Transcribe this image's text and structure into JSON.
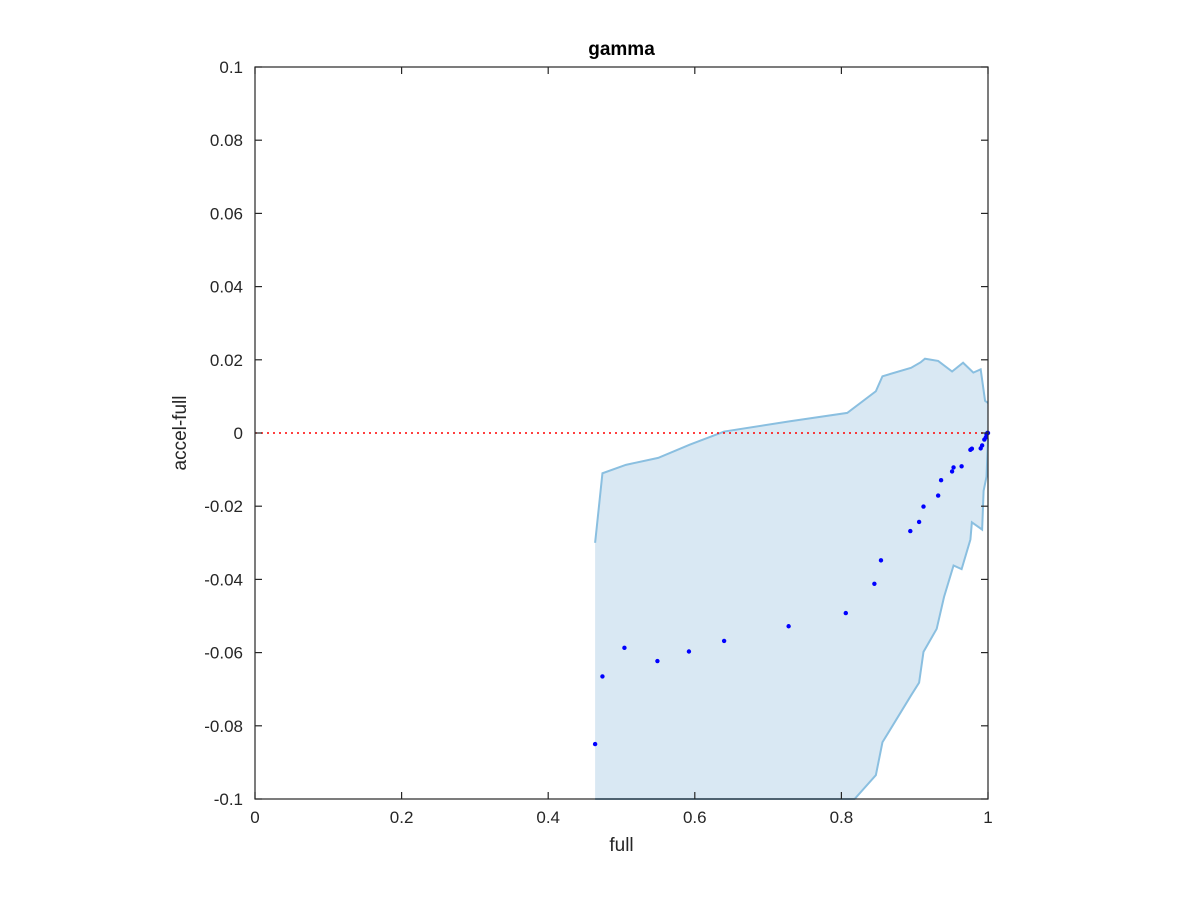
{
  "chart_data": {
    "type": "scatter",
    "title": "gamma",
    "xlabel": "full",
    "ylabel": "accel-full",
    "xlim": [
      0,
      1
    ],
    "ylim": [
      -0.1,
      0.1
    ],
    "xticks": [
      0,
      0.2,
      0.4,
      0.6,
      0.8,
      1
    ],
    "xtick_labels": [
      "0",
      "0.2",
      "0.4",
      "0.6",
      "0.8",
      "1"
    ],
    "yticks": [
      0.1,
      0.08,
      0.06,
      0.04,
      0.02,
      0,
      -0.02,
      -0.04,
      -0.06,
      -0.08,
      -0.1
    ],
    "ytick_labels": [
      "0.1",
      "0.08",
      "0.06",
      "0.04",
      "0.02",
      "0",
      "-0.02",
      "-0.04",
      "-0.06",
      "-0.08",
      "-0.1"
    ],
    "grid": false,
    "reference_line": {
      "y": 0,
      "style": "dotted",
      "color": "#ff0000"
    },
    "colors": {
      "points": "#0000ff",
      "band_fill": "#d9e8f3",
      "band_edge": "#8abfe0",
      "axes": "#262626"
    },
    "points": {
      "x": [
        0.464,
        0.474,
        0.504,
        0.549,
        0.592,
        0.64,
        0.728,
        0.806,
        0.845,
        0.854,
        0.894,
        0.906,
        0.912,
        0.932,
        0.936,
        0.951,
        0.953,
        0.964,
        0.976,
        0.978,
        0.99,
        0.992,
        0.995,
        0.997,
        0.998,
        0.999,
        1.0
      ],
      "y": [
        -0.085,
        -0.0665,
        -0.0587,
        -0.0623,
        -0.0597,
        -0.0568,
        -0.0528,
        -0.0492,
        -0.0412,
        -0.0348,
        -0.0268,
        -0.0243,
        -0.0201,
        -0.0171,
        -0.0129,
        -0.0105,
        -0.0094,
        -0.0091,
        -0.0046,
        -0.0043,
        -0.0042,
        -0.0034,
        -0.0018,
        -0.0012,
        -0.0004,
        0.0,
        0.0
      ]
    },
    "band": {
      "upper": {
        "x": [
          0.464,
          0.474,
          0.506,
          0.55,
          0.593,
          0.64,
          0.73,
          0.808,
          0.847,
          0.856,
          0.895,
          0.908,
          0.914,
          0.932,
          0.951,
          0.966,
          0.98,
          0.99,
          0.996,
          1.0
        ],
        "y": [
          -0.03,
          -0.011,
          -0.0087,
          -0.0068,
          -0.0032,
          0.0004,
          0.0032,
          0.0055,
          0.0114,
          0.0155,
          0.0178,
          0.0193,
          0.0203,
          0.0197,
          0.0168,
          0.0192,
          0.0165,
          0.0174,
          0.0088,
          0.0082
        ]
      },
      "lower": {
        "x": [
          0.464,
          0.818,
          0.847,
          0.856,
          0.895,
          0.906,
          0.912,
          0.93,
          0.94,
          0.953,
          0.964,
          0.976,
          0.978,
          0.992,
          0.994,
          0.998,
          1.0
        ],
        "y": [
          -0.1,
          -0.1,
          -0.0935,
          -0.0845,
          -0.0717,
          -0.0682,
          -0.0598,
          -0.0535,
          -0.0448,
          -0.0362,
          -0.0372,
          -0.0291,
          -0.0244,
          -0.0264,
          -0.0158,
          -0.0119,
          -0.0015
        ]
      }
    }
  }
}
